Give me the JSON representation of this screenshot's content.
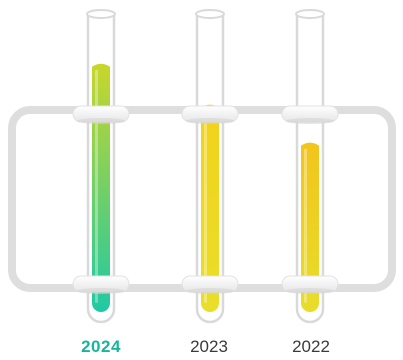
{
  "tubes": [
    {
      "year": "2024",
      "level": 0.85,
      "active": true,
      "color_top": "#c9d62a",
      "color_bottom": "#1fc9a3"
    },
    {
      "year": "2023",
      "level": 0.71,
      "active": false,
      "color_top": "#f2d21a",
      "color_bottom": "#e9de2b"
    },
    {
      "year": "2022",
      "level": 0.58,
      "active": false,
      "color_top": "#f2c51c",
      "color_bottom": "#e7dd2a"
    }
  ],
  "colors": {
    "rack": "#dedede",
    "glass": "#d9d9d9",
    "active_label": "#15b79a",
    "label": "#3a3a3a"
  }
}
